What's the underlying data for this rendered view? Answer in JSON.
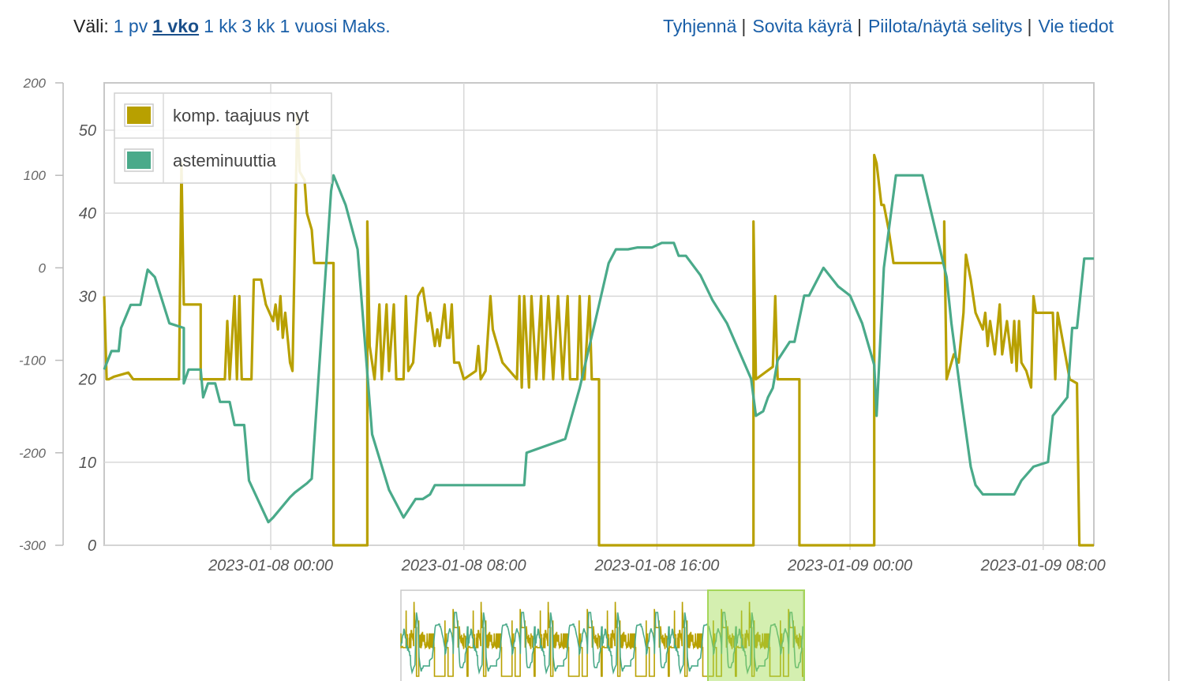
{
  "range": {
    "prefix": "Väli:",
    "options": [
      {
        "label": "1 pv",
        "active": false
      },
      {
        "label": "1 vko",
        "active": true
      },
      {
        "label": "1 kk",
        "active": false
      },
      {
        "label": "3 kk",
        "active": false
      },
      {
        "label": "1 vuosi",
        "active": false
      },
      {
        "label": "Maks.",
        "active": false
      }
    ]
  },
  "actions": [
    "Tyhjennä",
    "Sovita käyrä",
    "Piilota/näytä selitys",
    "Vie tiedot"
  ],
  "chart_data": {
    "type": "line",
    "title": "",
    "xlabel": "",
    "x_ticks": [
      "2023-01-08 00:00",
      "2023-01-08 08:00",
      "2023-01-08 16:00",
      "2023-01-09 00:00",
      "2023-01-09 08:00"
    ],
    "x_range_hours": [
      -6.9,
      34.1
    ],
    "grid": true,
    "legend_position": "top-left",
    "axes": {
      "left": {
        "range": [
          -300,
          200
        ],
        "ticks": [
          200,
          100,
          0,
          -100,
          -200,
          -300
        ]
      },
      "inner": {
        "range": [
          0,
          55.7
        ],
        "ticks": [
          50,
          40,
          30,
          20,
          10,
          0
        ]
      }
    },
    "series": [
      {
        "name": "komp. taajuus nyt",
        "color": "#b8a000",
        "axis": "inner",
        "points": [
          [
            -6.9,
            30
          ],
          [
            -6.8,
            20
          ],
          [
            -6.7,
            20
          ],
          [
            -6.5,
            20.3
          ],
          [
            -5.9,
            20.8
          ],
          [
            -5.7,
            20
          ],
          [
            -3.8,
            20
          ],
          [
            -3.7,
            46
          ],
          [
            -3.6,
            29
          ],
          [
            -2.9,
            29
          ],
          [
            -2.9,
            20
          ],
          [
            -1.9,
            20
          ],
          [
            -1.8,
            27
          ],
          [
            -1.7,
            20
          ],
          [
            -1.5,
            30
          ],
          [
            -1.4,
            20
          ],
          [
            -1.3,
            30
          ],
          [
            -1.2,
            20
          ],
          [
            -0.8,
            20
          ],
          [
            -0.7,
            32
          ],
          [
            -0.4,
            32
          ],
          [
            -0.2,
            29
          ],
          [
            0.1,
            27
          ],
          [
            0.2,
            29
          ],
          [
            0.3,
            26
          ],
          [
            0.4,
            30
          ],
          [
            0.5,
            25
          ],
          [
            0.6,
            28
          ],
          [
            0.8,
            22
          ],
          [
            0.9,
            21
          ],
          [
            1.1,
            52
          ],
          [
            1.2,
            45
          ],
          [
            1.4,
            44
          ],
          [
            1.5,
            40
          ],
          [
            1.7,
            38
          ],
          [
            1.8,
            34
          ],
          [
            2.6,
            34
          ],
          [
            2.6,
            0
          ],
          [
            4,
            0
          ],
          [
            4,
            39
          ],
          [
            4.1,
            24
          ],
          [
            4.3,
            20
          ],
          [
            4.5,
            29
          ],
          [
            4.6,
            20
          ],
          [
            4.8,
            29
          ],
          [
            4.9,
            21
          ],
          [
            5.1,
            29
          ],
          [
            5.2,
            20
          ],
          [
            5.5,
            20
          ],
          [
            5.6,
            30
          ],
          [
            5.7,
            21
          ],
          [
            5.9,
            22
          ],
          [
            6.1,
            30
          ],
          [
            6.3,
            31
          ],
          [
            6.5,
            27
          ],
          [
            6.6,
            28
          ],
          [
            6.8,
            24
          ],
          [
            6.9,
            26
          ],
          [
            7,
            24
          ],
          [
            7.2,
            29
          ],
          [
            7.3,
            25
          ],
          [
            7.4,
            25
          ],
          [
            7.5,
            29
          ],
          [
            7.6,
            22
          ],
          [
            7.8,
            22
          ],
          [
            8,
            20
          ],
          [
            8.5,
            21
          ],
          [
            8.6,
            24
          ],
          [
            8.7,
            20
          ],
          [
            8.9,
            21
          ],
          [
            9.1,
            30
          ],
          [
            9.2,
            26
          ],
          [
            9.4,
            24
          ],
          [
            9.6,
            22
          ],
          [
            10.2,
            20
          ],
          [
            10.3,
            30
          ],
          [
            10.4,
            19
          ],
          [
            10.5,
            30
          ],
          [
            10.7,
            19
          ],
          [
            10.8,
            30
          ],
          [
            11,
            20
          ],
          [
            11.2,
            30
          ],
          [
            11.3,
            20
          ],
          [
            11.5,
            30
          ],
          [
            11.7,
            20
          ],
          [
            11.9,
            30
          ],
          [
            12.1,
            20
          ],
          [
            12.3,
            30
          ],
          [
            12.4,
            20
          ],
          [
            12.7,
            20
          ],
          [
            12.8,
            30
          ],
          [
            12.9,
            20
          ],
          [
            13,
            20
          ],
          [
            13.2,
            30
          ],
          [
            13.3,
            20
          ],
          [
            13.6,
            20
          ],
          [
            13.6,
            0
          ],
          [
            20,
            0
          ],
          [
            20,
            39
          ],
          [
            20.1,
            20
          ],
          [
            20.8,
            21.5
          ],
          [
            20.9,
            30
          ],
          [
            21,
            20
          ],
          [
            21.9,
            20
          ],
          [
            21.9,
            0
          ],
          [
            25,
            0
          ],
          [
            25,
            47
          ],
          [
            25.1,
            46
          ],
          [
            25.3,
            41
          ],
          [
            25.4,
            41
          ],
          [
            25.6,
            38
          ],
          [
            25.7,
            36
          ],
          [
            25.8,
            34
          ],
          [
            27.9,
            34
          ],
          [
            27.9,
            39
          ],
          [
            28,
            20
          ],
          [
            28.3,
            23
          ],
          [
            28.5,
            22
          ],
          [
            28.7,
            28
          ],
          [
            28.8,
            35
          ],
          [
            29,
            32
          ],
          [
            29.2,
            28
          ],
          [
            29.5,
            26
          ],
          [
            29.6,
            28
          ],
          [
            29.7,
            24
          ],
          [
            29.8,
            27
          ],
          [
            30,
            23
          ],
          [
            30.2,
            29
          ],
          [
            30.3,
            23
          ],
          [
            30.5,
            27
          ],
          [
            30.7,
            22
          ],
          [
            30.8,
            27
          ],
          [
            30.9,
            21
          ],
          [
            31,
            27
          ],
          [
            31.1,
            22
          ],
          [
            31.3,
            21
          ],
          [
            31.5,
            19
          ],
          [
            31.6,
            30
          ],
          [
            31.7,
            28
          ],
          [
            32.4,
            28
          ],
          [
            32.5,
            20
          ],
          [
            32.6,
            28
          ],
          [
            33.1,
            20
          ],
          [
            33.4,
            19.5
          ],
          [
            33.5,
            0
          ],
          [
            34.1,
            0
          ]
        ]
      },
      {
        "name": "asteminuuttia",
        "color": "#4aaa8a",
        "axis": "left",
        "points": [
          [
            -6.9,
            -110
          ],
          [
            -6.6,
            -90
          ],
          [
            -6.3,
            -90
          ],
          [
            -6.2,
            -65
          ],
          [
            -5.8,
            -40
          ],
          [
            -5.4,
            -40
          ],
          [
            -5.1,
            -2
          ],
          [
            -4.8,
            -10
          ],
          [
            -4.5,
            -35
          ],
          [
            -4.2,
            -60
          ],
          [
            -3.6,
            -65
          ],
          [
            -3.6,
            -125
          ],
          [
            -3.4,
            -110
          ],
          [
            -2.9,
            -110
          ],
          [
            -2.8,
            -140
          ],
          [
            -2.6,
            -125
          ],
          [
            -2.3,
            -125
          ],
          [
            -2.1,
            -145
          ],
          [
            -1.7,
            -145
          ],
          [
            -1.5,
            -170
          ],
          [
            -1.1,
            -170
          ],
          [
            -0.9,
            -230
          ],
          [
            -0.1,
            -275
          ],
          [
            0.1,
            -270
          ],
          [
            0.8,
            -248
          ],
          [
            1,
            -243
          ],
          [
            1.5,
            -233
          ],
          [
            1.7,
            -228
          ],
          [
            2.5,
            83
          ],
          [
            2.6,
            100
          ],
          [
            3.1,
            68
          ],
          [
            3.6,
            20
          ],
          [
            4.2,
            -180
          ],
          [
            4.9,
            -240
          ],
          [
            5.5,
            -270
          ],
          [
            6,
            -250
          ],
          [
            6.3,
            -250
          ],
          [
            6.6,
            -245
          ],
          [
            6.8,
            -235
          ],
          [
            10.5,
            -235
          ],
          [
            10.6,
            -200
          ],
          [
            12.2,
            -185
          ],
          [
            12.8,
            -130
          ],
          [
            13.6,
            -40
          ],
          [
            14,
            5
          ],
          [
            14.3,
            20
          ],
          [
            14.8,
            20
          ],
          [
            15.2,
            22
          ],
          [
            15.8,
            22
          ],
          [
            16.2,
            27
          ],
          [
            16.7,
            27
          ],
          [
            16.9,
            13
          ],
          [
            17.2,
            13
          ],
          [
            17.8,
            -8
          ],
          [
            18.3,
            -35
          ],
          [
            18.9,
            -60
          ],
          [
            19.4,
            -90
          ],
          [
            19.9,
            -120
          ],
          [
            20.1,
            -160
          ],
          [
            20.4,
            -155
          ],
          [
            20.6,
            -140
          ],
          [
            20.8,
            -130
          ],
          [
            21,
            -100
          ],
          [
            21.5,
            -80
          ],
          [
            21.7,
            -80
          ],
          [
            22.1,
            -30
          ],
          [
            22.3,
            -30
          ],
          [
            22.9,
            0
          ],
          [
            23.5,
            -20
          ],
          [
            24,
            -30
          ],
          [
            24.5,
            -60
          ],
          [
            25,
            -105
          ],
          [
            25.1,
            -160
          ],
          [
            25.4,
            0
          ],
          [
            25.9,
            100
          ],
          [
            27,
            100
          ],
          [
            28,
            -10
          ],
          [
            28.2,
            -60
          ],
          [
            28.6,
            -140
          ],
          [
            29,
            -215
          ],
          [
            29.2,
            -235
          ],
          [
            29.5,
            -245
          ],
          [
            30.8,
            -245
          ],
          [
            31.1,
            -230
          ],
          [
            31.6,
            -215
          ],
          [
            32.2,
            -210
          ],
          [
            32.4,
            -160
          ],
          [
            33,
            -140
          ],
          [
            33.2,
            -65
          ],
          [
            33.4,
            -65
          ],
          [
            33.7,
            10
          ],
          [
            34.1,
            10
          ]
        ]
      }
    ]
  }
}
